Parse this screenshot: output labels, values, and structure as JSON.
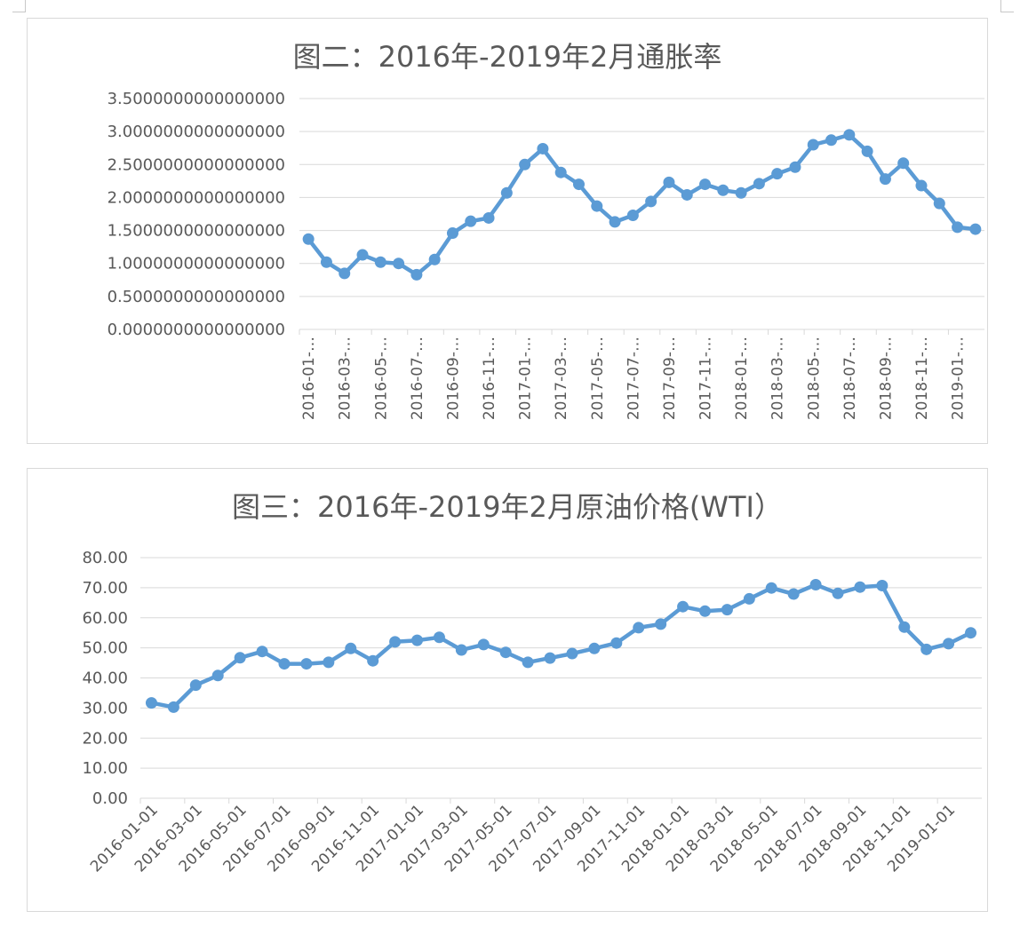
{
  "chart_data": [
    {
      "type": "line",
      "title": "图二：2016年-2019年2月通胀率",
      "ylim": [
        0,
        3.5
      ],
      "y_ticks": [
        "0.0000000000000000",
        "0.5000000000000000",
        "1.0000000000000000",
        "1.5000000000000000",
        "2.0000000000000000",
        "2.5000000000000000",
        "3.0000000000000000",
        "3.5000000000000000"
      ],
      "x_tick_labels": [
        "2016-01-…",
        "2016-03-…",
        "2016-05-…",
        "2016-07-…",
        "2016-09-…",
        "2016-11-…",
        "2017-01-…",
        "2017-03-…",
        "2017-05-…",
        "2017-07-…",
        "2017-09-…",
        "2017-11-…",
        "2018-01-…",
        "2018-03-…",
        "2018-05-…",
        "2018-07-…",
        "2018-09-…",
        "2018-11-…",
        "2019-01-…"
      ],
      "grid": true,
      "color": "#5b9bd5",
      "x": [
        "2016-01",
        "2016-02",
        "2016-03",
        "2016-04",
        "2016-05",
        "2016-06",
        "2016-07",
        "2016-08",
        "2016-09",
        "2016-10",
        "2016-11",
        "2016-12",
        "2017-01",
        "2017-02",
        "2017-03",
        "2017-04",
        "2017-05",
        "2017-06",
        "2017-07",
        "2017-08",
        "2017-09",
        "2017-10",
        "2017-11",
        "2017-12",
        "2018-01",
        "2018-02",
        "2018-03",
        "2018-04",
        "2018-05",
        "2018-06",
        "2018-07",
        "2018-08",
        "2018-09",
        "2018-10",
        "2018-11",
        "2018-12",
        "2019-01",
        "2019-02"
      ],
      "values": [
        1.37,
        1.02,
        0.85,
        1.13,
        1.02,
        1.0,
        0.83,
        1.06,
        1.46,
        1.64,
        1.69,
        2.07,
        2.5,
        2.74,
        2.38,
        2.2,
        1.87,
        1.63,
        1.73,
        1.94,
        2.23,
        2.04,
        2.2,
        2.11,
        2.07,
        2.21,
        2.36,
        2.46,
        2.8,
        2.87,
        2.95,
        2.7,
        2.28,
        2.52,
        2.18,
        1.91,
        1.55,
        1.52
      ]
    },
    {
      "type": "line",
      "title": "图三：2016年-2019年2月原油价格(WTI）",
      "ylim": [
        0,
        80
      ],
      "y_ticks": [
        "0.00",
        "10.00",
        "20.00",
        "30.00",
        "40.00",
        "50.00",
        "60.00",
        "70.00",
        "80.00"
      ],
      "x_tick_labels": [
        "2016-01-01",
        "2016-03-01",
        "2016-05-01",
        "2016-07-01",
        "2016-09-01",
        "2016-11-01",
        "2017-01-01",
        "2017-03-01",
        "2017-05-01",
        "2017-07-01",
        "2017-09-01",
        "2017-11-01",
        "2018-01-01",
        "2018-03-01",
        "2018-05-01",
        "2018-07-01",
        "2018-09-01",
        "2018-11-01",
        "2019-01-01"
      ],
      "grid": true,
      "color": "#5b9bd5",
      "x": [
        "2016-01-01",
        "2016-02-01",
        "2016-03-01",
        "2016-04-01",
        "2016-05-01",
        "2016-06-01",
        "2016-07-01",
        "2016-08-01",
        "2016-09-01",
        "2016-10-01",
        "2016-11-01",
        "2016-12-01",
        "2017-01-01",
        "2017-02-01",
        "2017-03-01",
        "2017-04-01",
        "2017-05-01",
        "2017-06-01",
        "2017-07-01",
        "2017-08-01",
        "2017-09-01",
        "2017-10-01",
        "2017-11-01",
        "2017-12-01",
        "2018-01-01",
        "2018-02-01",
        "2018-03-01",
        "2018-04-01",
        "2018-05-01",
        "2018-06-01",
        "2018-07-01",
        "2018-08-01",
        "2018-09-01",
        "2018-10-01",
        "2018-11-01",
        "2018-12-01",
        "2019-01-01",
        "2019-02-01"
      ],
      "values": [
        31.7,
        30.3,
        37.6,
        40.8,
        46.7,
        48.8,
        44.7,
        44.7,
        45.2,
        49.8,
        45.7,
        52.0,
        52.5,
        53.5,
        49.3,
        51.1,
        48.5,
        45.2,
        46.6,
        48.1,
        49.8,
        51.6,
        56.7,
        57.9,
        63.7,
        62.2,
        62.7,
        66.3,
        69.9,
        67.9,
        71.0,
        68.1,
        70.2,
        70.7,
        56.9,
        49.5,
        51.4,
        55.0
      ]
    }
  ]
}
